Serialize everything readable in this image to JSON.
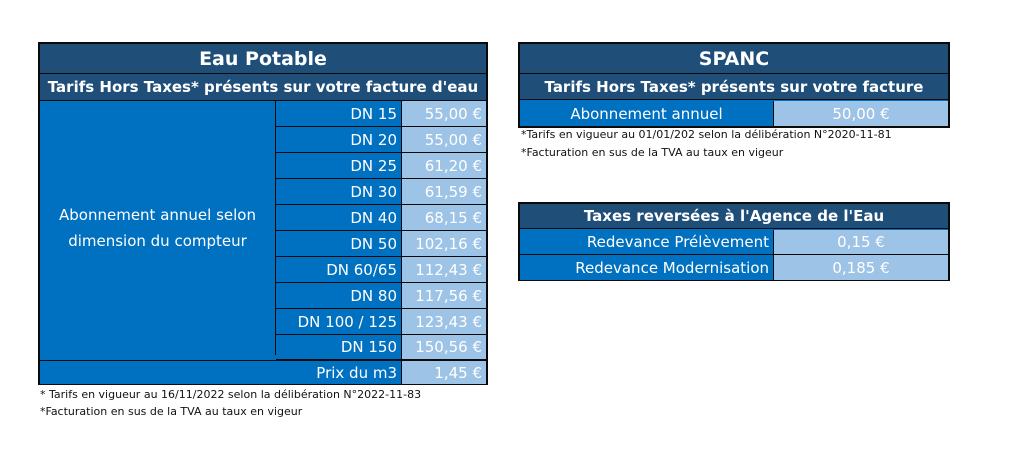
{
  "eau_potable": {
    "title": "Eau Potable",
    "subtitle": "Tarifs Hors Taxes* présents sur votre facture d'eau",
    "label": "Abonnement annuel selon dimension du compteur",
    "rows": [
      {
        "dn": "DN 15",
        "value": "55,00 €"
      },
      {
        "dn": "DN 20",
        "value": "55,00 €"
      },
      {
        "dn": "DN 25",
        "value": "61,20 €"
      },
      {
        "dn": "DN 30",
        "value": "61,59 €"
      },
      {
        "dn": "DN 40",
        "value": "68,15 €"
      },
      {
        "dn": "DN 50",
        "value": "102,16 €"
      },
      {
        "dn": "DN 60/65",
        "value": "112,43 €"
      },
      {
        "dn": "DN 80",
        "value": "117,56 €"
      },
      {
        "dn": "DN 100 / 125",
        "value": "123,43 €"
      },
      {
        "dn": "DN 150",
        "value": "150,56 €"
      }
    ],
    "prix_label": "Prix du m3",
    "prix_value": "1,45 €",
    "note1": "* Tarifs en vigueur au 16/11/2022 selon la délibération N°2022-11-83",
    "note2": "*Facturation en sus de la TVA au taux en vigeur"
  },
  "spanc": {
    "title": "SPANC",
    "subtitle": "Tarifs Hors Taxes* présents sur votre facture",
    "label": "Abonnement annuel",
    "value": "50,00 €",
    "note1": "*Tarifs en vigueur au 01/01/202 selon la délibération N°2020-11-81",
    "note2": "*Facturation en sus de la TVA au taux en vigeur"
  },
  "taxes": {
    "title": "Taxes reversées à l'Agence de l'Eau",
    "rows": [
      {
        "label": "Redevance Prélèvement",
        "value": "0,15 €"
      },
      {
        "label": "Redevance Modernisation",
        "value": "0,185 €"
      }
    ]
  },
  "colors": {
    "dark_blue": "#1f4e79",
    "mid_blue": "#0070c0",
    "light_blue": "#9dc3e6"
  }
}
